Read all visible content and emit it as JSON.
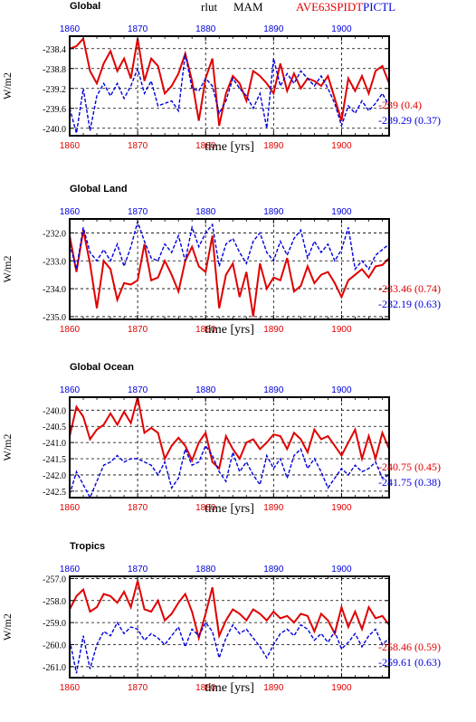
{
  "header": {
    "variable": "rlut",
    "season": "MAM",
    "exp": "AVE63SPIDT",
    "ctl": "PICTL"
  },
  "colors": {
    "exp": "#e00000",
    "ctl": "#0000dd",
    "axis": "#000000",
    "grid": "#000000"
  },
  "chart_data": [
    {
      "type": "line",
      "title": "Global",
      "xlabel": "time [yrs]",
      "ylabel": "W/m2",
      "xlim": [
        1860,
        1907
      ],
      "ylim": [
        -240.15,
        -238.15
      ],
      "yticks": [
        -238.4,
        -238.8,
        -239.2,
        -239.6,
        -240.0
      ],
      "ytick_labels": [
        "-238.4",
        "-238.8",
        "-239.2",
        "-239.6",
        "-240.0"
      ],
      "xticks": [
        1860,
        1870,
        1880,
        1890,
        1900
      ],
      "xtick_labels": [
        "1860",
        "1870",
        "1880",
        "1890",
        "1900"
      ],
      "grid": true,
      "x": [
        1860,
        1861,
        1862,
        1863,
        1864,
        1865,
        1866,
        1867,
        1868,
        1869,
        1870,
        1871,
        1872,
        1873,
        1874,
        1875,
        1876,
        1877,
        1878,
        1879,
        1880,
        1881,
        1882,
        1883,
        1884,
        1885,
        1886,
        1887,
        1888,
        1889,
        1890,
        1891,
        1892,
        1893,
        1894,
        1895,
        1896,
        1897,
        1898,
        1899,
        1900,
        1901,
        1902,
        1903,
        1904,
        1905,
        1906,
        1907
      ],
      "series": [
        {
          "name": "AVE63SPIDT",
          "values": [
            -238.4,
            -238.35,
            -238.2,
            -238.85,
            -239.1,
            -238.7,
            -238.45,
            -238.85,
            -238.6,
            -239.0,
            -238.2,
            -239.05,
            -238.6,
            -238.75,
            -239.3,
            -239.15,
            -238.9,
            -238.5,
            -239.05,
            -239.85,
            -239.0,
            -238.6,
            -239.95,
            -239.3,
            -238.95,
            -239.1,
            -239.45,
            -238.85,
            -238.95,
            -239.1,
            -239.3,
            -238.7,
            -239.25,
            -238.9,
            -239.2,
            -239.0,
            -239.05,
            -239.15,
            -238.95,
            -239.4,
            -239.85,
            -239.0,
            -239.25,
            -238.95,
            -239.3,
            -238.85,
            -238.75,
            -239.1
          ]
        },
        {
          "name": "PICTL",
          "values": [
            -239.6,
            -240.1,
            -239.2,
            -240.05,
            -239.35,
            -239.1,
            -239.35,
            -239.1,
            -239.4,
            -239.15,
            -238.8,
            -239.3,
            -239.05,
            -239.55,
            -239.5,
            -239.45,
            -239.65,
            -238.5,
            -239.2,
            -239.25,
            -239.0,
            -239.15,
            -239.7,
            -239.45,
            -239.0,
            -239.2,
            -239.35,
            -239.6,
            -239.3,
            -240.0,
            -238.6,
            -239.15,
            -238.9,
            -239.1,
            -238.85,
            -239.0,
            -239.15,
            -238.95,
            -239.2,
            -239.5,
            -239.95,
            -239.55,
            -239.7,
            -239.45,
            -239.65,
            -239.5,
            -239.3,
            -239.55
          ]
        }
      ],
      "labels": [
        {
          "text": "-239 (0.4)",
          "series": "AVE63SPIDT"
        },
        {
          "text": "-239.29 (0.37)",
          "series": "PICTL"
        }
      ]
    },
    {
      "type": "line",
      "title": "Global Land",
      "xlabel": "time [yrs]",
      "ylabel": "W/m2",
      "xlim": [
        1860,
        1907
      ],
      "ylim": [
        -235.1,
        -231.5
      ],
      "yticks": [
        -232.0,
        -233.0,
        -234.0,
        -235.0
      ],
      "ytick_labels": [
        "-232.0",
        "-233.0",
        "-234.0",
        "-235.0"
      ],
      "xticks": [
        1860,
        1870,
        1880,
        1890,
        1900
      ],
      "xtick_labels": [
        "1860",
        "1870",
        "1880",
        "1890",
        "1900"
      ],
      "grid": true,
      "x": [
        1860,
        1861,
        1862,
        1863,
        1864,
        1865,
        1866,
        1867,
        1868,
        1869,
        1870,
        1871,
        1872,
        1873,
        1874,
        1875,
        1876,
        1877,
        1878,
        1879,
        1880,
        1881,
        1882,
        1883,
        1884,
        1885,
        1886,
        1887,
        1888,
        1889,
        1890,
        1891,
        1892,
        1893,
        1894,
        1895,
        1896,
        1897,
        1898,
        1899,
        1900,
        1901,
        1902,
        1903,
        1904,
        1905,
        1906,
        1907
      ],
      "series": [
        {
          "name": "AVE63SPIDT",
          "values": [
            -232.1,
            -233.4,
            -231.9,
            -233.1,
            -234.7,
            -233.0,
            -233.3,
            -234.4,
            -233.8,
            -233.85,
            -233.7,
            -232.4,
            -233.7,
            -233.6,
            -233.0,
            -233.5,
            -234.1,
            -233.0,
            -232.5,
            -233.2,
            -233.4,
            -232.1,
            -234.7,
            -233.5,
            -233.1,
            -234.3,
            -233.4,
            -235.0,
            -233.1,
            -234.0,
            -233.6,
            -233.7,
            -232.9,
            -234.1,
            -233.9,
            -233.2,
            -233.8,
            -233.5,
            -233.4,
            -233.8,
            -234.3,
            -233.7,
            -233.5,
            -233.3,
            -233.6,
            -233.2,
            -233.15,
            -232.9
          ]
        },
        {
          "name": "PICTL",
          "values": [
            -232.4,
            -233.3,
            -231.8,
            -232.7,
            -233.0,
            -232.6,
            -233.0,
            -232.4,
            -233.2,
            -232.5,
            -231.6,
            -232.3,
            -232.9,
            -233.0,
            -232.4,
            -232.7,
            -232.1,
            -233.0,
            -231.8,
            -232.5,
            -232.0,
            -231.7,
            -233.2,
            -232.4,
            -232.2,
            -232.7,
            -233.1,
            -232.3,
            -232.0,
            -232.7,
            -233.0,
            -232.3,
            -232.8,
            -232.2,
            -231.9,
            -232.9,
            -232.3,
            -232.7,
            -232.4,
            -233.0,
            -232.6,
            -231.8,
            -233.3,
            -233.0,
            -233.3,
            -232.8,
            -232.6,
            -232.4
          ]
        }
      ],
      "labels": [
        {
          "text": "-233.46 (0.74)",
          "series": "AVE63SPIDT"
        },
        {
          "text": "-232.19 (0.63)",
          "series": "PICTL"
        }
      ]
    },
    {
      "type": "line",
      "title": "Global Ocean",
      "xlabel": "time [yrs]",
      "ylabel": "W/m2",
      "xlim": [
        1860,
        1907
      ],
      "ylim": [
        -242.7,
        -239.6
      ],
      "yticks": [
        -240.0,
        -240.5,
        -241.0,
        -241.5,
        -242.0,
        -242.5
      ],
      "ytick_labels": [
        "-240.0",
        "-240.5",
        "-241.0",
        "-241.5",
        "-242.0",
        "-242.5"
      ],
      "xticks": [
        1860,
        1870,
        1880,
        1890,
        1900
      ],
      "xtick_labels": [
        "1860",
        "1870",
        "1880",
        "1890",
        "1900"
      ],
      "grid": true,
      "x": [
        1860,
        1861,
        1862,
        1863,
        1864,
        1865,
        1866,
        1867,
        1868,
        1869,
        1870,
        1871,
        1872,
        1873,
        1874,
        1875,
        1876,
        1877,
        1878,
        1879,
        1880,
        1881,
        1882,
        1883,
        1884,
        1885,
        1886,
        1887,
        1888,
        1889,
        1890,
        1891,
        1892,
        1893,
        1894,
        1895,
        1896,
        1897,
        1898,
        1899,
        1900,
        1901,
        1902,
        1903,
        1904,
        1905,
        1906,
        1907
      ],
      "series": [
        {
          "name": "AVE63SPIDT",
          "values": [
            -240.8,
            -239.9,
            -240.2,
            -240.9,
            -240.6,
            -240.45,
            -240.1,
            -240.45,
            -240.05,
            -240.4,
            -239.6,
            -240.7,
            -240.55,
            -240.7,
            -241.5,
            -241.1,
            -240.85,
            -241.1,
            -241.55,
            -241.0,
            -240.7,
            -241.6,
            -241.8,
            -240.8,
            -241.2,
            -241.5,
            -241.0,
            -240.9,
            -241.2,
            -241.0,
            -240.75,
            -240.8,
            -241.2,
            -240.7,
            -240.9,
            -241.3,
            -240.6,
            -240.9,
            -240.8,
            -241.1,
            -241.4,
            -241.0,
            -240.6,
            -241.5,
            -240.8,
            -241.5,
            -240.7,
            -241.2
          ]
        },
        {
          "name": "PICTL",
          "values": [
            -242.6,
            -241.9,
            -242.3,
            -242.7,
            -242.2,
            -241.7,
            -241.6,
            -241.4,
            -241.6,
            -241.5,
            -241.5,
            -241.6,
            -241.7,
            -242.0,
            -241.6,
            -242.4,
            -242.1,
            -241.2,
            -241.7,
            -241.6,
            -241.1,
            -241.4,
            -241.9,
            -242.2,
            -241.3,
            -241.9,
            -241.6,
            -242.0,
            -242.3,
            -241.4,
            -241.8,
            -241.5,
            -242.1,
            -241.4,
            -241.2,
            -241.8,
            -241.5,
            -241.9,
            -242.4,
            -242.1,
            -241.8,
            -242.0,
            -241.7,
            -241.9,
            -241.8,
            -241.6,
            -242.1,
            -242.0
          ]
        }
      ],
      "labels": [
        {
          "text": "-240.75 (0.45)",
          "series": "AVE63SPIDT"
        },
        {
          "text": "-241.75 (0.38)",
          "series": "PICTL"
        }
      ]
    },
    {
      "type": "line",
      "title": "Tropics",
      "xlabel": "time [yrs]",
      "ylabel": "W/m2",
      "xlim": [
        1860,
        1907
      ],
      "ylim": [
        -261.5,
        -256.9
      ],
      "yticks": [
        -257.0,
        -258.0,
        -259.0,
        -260.0,
        -261.0
      ],
      "ytick_labels": [
        "-257.0",
        "-258.0",
        "-259.0",
        "-260.0",
        "-261.0"
      ],
      "xticks": [
        1860,
        1870,
        1880,
        1890,
        1900
      ],
      "xtick_labels": [
        "1860",
        "1870",
        "1880",
        "1890",
        "1900"
      ],
      "grid": true,
      "x": [
        1860,
        1861,
        1862,
        1863,
        1864,
        1865,
        1866,
        1867,
        1868,
        1869,
        1870,
        1871,
        1872,
        1873,
        1874,
        1875,
        1876,
        1877,
        1878,
        1879,
        1880,
        1881,
        1882,
        1883,
        1884,
        1885,
        1886,
        1887,
        1888,
        1889,
        1890,
        1891,
        1892,
        1893,
        1894,
        1895,
        1896,
        1897,
        1898,
        1899,
        1900,
        1901,
        1902,
        1903,
        1904,
        1905,
        1906,
        1907
      ],
      "series": [
        {
          "name": "AVE63SPIDT",
          "values": [
            -258.4,
            -257.8,
            -257.5,
            -258.5,
            -258.3,
            -257.7,
            -257.8,
            -258.1,
            -257.6,
            -258.3,
            -257.1,
            -258.4,
            -258.5,
            -258.0,
            -258.9,
            -258.6,
            -258.1,
            -257.7,
            -258.5,
            -259.7,
            -258.6,
            -257.4,
            -259.6,
            -258.9,
            -258.4,
            -258.6,
            -258.9,
            -258.4,
            -258.6,
            -258.9,
            -258.5,
            -258.8,
            -258.7,
            -259.0,
            -258.6,
            -258.7,
            -259.4,
            -258.6,
            -258.9,
            -259.5,
            -258.3,
            -259.2,
            -258.5,
            -259.3,
            -258.3,
            -258.8,
            -258.7,
            -259.1
          ]
        },
        {
          "name": "PICTL",
          "values": [
            -259.8,
            -261.3,
            -259.6,
            -261.1,
            -260.0,
            -259.4,
            -259.6,
            -259.0,
            -259.5,
            -259.2,
            -259.3,
            -259.8,
            -259.5,
            -259.7,
            -260.0,
            -259.6,
            -259.2,
            -260.1,
            -259.3,
            -259.6,
            -259.0,
            -259.4,
            -260.6,
            -259.7,
            -259.1,
            -259.5,
            -259.3,
            -259.7,
            -260.1,
            -260.6,
            -260.0,
            -259.5,
            -259.3,
            -259.6,
            -259.1,
            -259.3,
            -259.8,
            -259.5,
            -259.9,
            -259.4,
            -260.2,
            -259.9,
            -259.5,
            -260.1,
            -259.6,
            -259.3,
            -260.0,
            -259.7
          ]
        }
      ],
      "labels": [
        {
          "text": "-258.46 (0.59)",
          "series": "AVE63SPIDT"
        },
        {
          "text": "-259.61 (0.63)",
          "series": "PICTL"
        }
      ]
    }
  ]
}
